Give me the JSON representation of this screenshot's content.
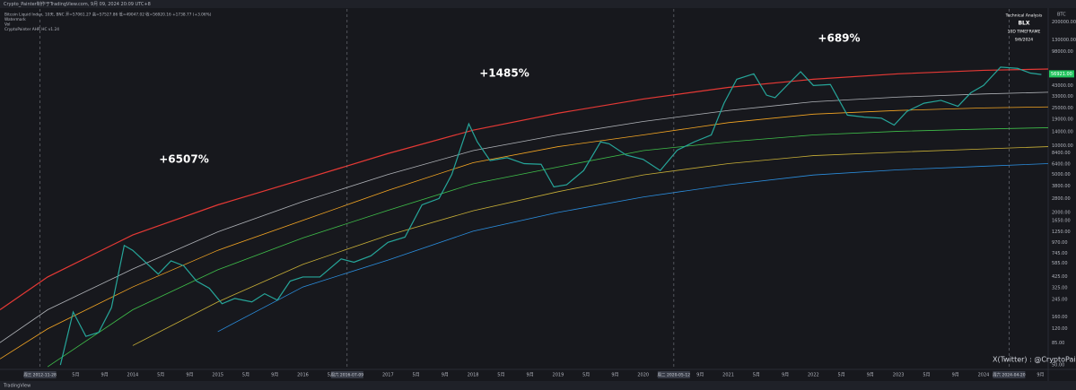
{
  "header": {
    "top_bar": "Crypto_Painter制作于TradingView.com, 9月 09, 2024 20:09 UTC+8",
    "legend_lines": [
      "Bitcoin Liquid Index, 10天, BNC  开=57061.27 高=57527.86 低=49047.02 收=56920.16 +1738.77 (+3.06%)",
      "Watermark",
      "Vol",
      "CryptoPainter AHR HC v1.24"
    ]
  },
  "chart_data": {
    "type": "line",
    "log_scale": true,
    "grid": false,
    "color": "#26a69a",
    "x": [
      2013.15,
      2013.3,
      2013.45,
      2013.6,
      2013.75,
      2013.9,
      2014.0,
      2014.15,
      2014.3,
      2014.45,
      2014.6,
      2014.75,
      2014.9,
      2015.05,
      2015.2,
      2015.4,
      2015.55,
      2015.7,
      2015.85,
      2016.0,
      2016.2,
      2016.45,
      2016.6,
      2016.8,
      2017.0,
      2017.2,
      2017.4,
      2017.6,
      2017.75,
      2017.95,
      2018.05,
      2018.2,
      2018.4,
      2018.6,
      2018.8,
      2018.95,
      2019.1,
      2019.3,
      2019.5,
      2019.6,
      2019.8,
      2020.0,
      2020.2,
      2020.4,
      2020.6,
      2020.8,
      2020.95,
      2021.1,
      2021.3,
      2021.45,
      2021.55,
      2021.7,
      2021.85,
      2022.0,
      2022.2,
      2022.4,
      2022.6,
      2022.8,
      2022.95,
      2023.1,
      2023.3,
      2023.5,
      2023.7,
      2023.85,
      2024.0,
      2024.2,
      2024.4,
      2024.55,
      2024.68
    ],
    "values": [
      50,
      180,
      100,
      110,
      200,
      900,
      800,
      600,
      450,
      620,
      550,
      380,
      320,
      220,
      250,
      230,
      280,
      240,
      380,
      420,
      420,
      650,
      600,
      700,
      970,
      1100,
      2400,
      2800,
      5000,
      17000,
      11000,
      7000,
      7500,
      6500,
      6400,
      3700,
      3900,
      5500,
      11000,
      10500,
      8000,
      7200,
      5500,
      9000,
      11000,
      13000,
      28000,
      50000,
      57000,
      34000,
      32000,
      44000,
      60000,
      43000,
      44000,
      21000,
      20000,
      19500,
      16500,
      23000,
      28000,
      30000,
      26000,
      36000,
      43000,
      67000,
      65000,
      58000,
      56000
    ],
    "bands": [
      {
        "color": "#e53935",
        "x": [
          2012.44,
          2013,
          2014,
          2015,
          2016,
          2017,
          2018,
          2019,
          2020,
          2021,
          2022,
          2023,
          2024,
          2024.76
        ],
        "values": [
          190,
          420,
          1160,
          2400,
          4440,
          8300,
          14600,
          22000,
          31000,
          41000,
          50000,
          57000,
          62000,
          64000
        ]
      },
      {
        "color": "#b0b3b8",
        "x": [
          2012.44,
          2013,
          2014,
          2015,
          2016,
          2017,
          2018,
          2019,
          2020,
          2021,
          2022,
          2023,
          2024,
          2024.76
        ],
        "values": [
          86,
          190,
          510,
          1250,
          2600,
          5000,
          8900,
          13000,
          18000,
          23500,
          29000,
          32500,
          35000,
          36500
        ]
      },
      {
        "color": "#f5a623",
        "x": [
          2012.44,
          2013,
          2014,
          2015,
          2016,
          2017,
          2018,
          2019,
          2020,
          2021,
          2022,
          2023,
          2024,
          2024.76
        ],
        "values": [
          58,
          120,
          330,
          800,
          1650,
          3400,
          6650,
          9800,
          13000,
          17500,
          21500,
          23500,
          25000,
          25600
        ]
      },
      {
        "color": "#3fbf4a",
        "x": [
          2012.44,
          2013,
          2014,
          2015,
          2016,
          2017,
          2018,
          2019,
          2020,
          2021,
          2022,
          2023,
          2024,
          2024.76
        ],
        "values": [
          null,
          48,
          190,
          500,
          1080,
          2100,
          3990,
          6000,
          8900,
          11000,
          13000,
          14200,
          15000,
          15500
        ]
      },
      {
        "color": "#c9b037",
        "x": [
          2012.44,
          2013,
          2014,
          2015,
          2016,
          2017,
          2018,
          2019,
          2020,
          2021,
          2022,
          2023,
          2024,
          2024.76
        ],
        "values": [
          null,
          null,
          80,
          230,
          570,
          1150,
          2080,
          3300,
          4950,
          6500,
          7890,
          8600,
          9280,
          9800
        ]
      },
      {
        "color": "#2b8fe0",
        "x": [
          2012.44,
          2013,
          2014,
          2015,
          2016,
          2017,
          2018,
          2019,
          2020,
          2021,
          2022,
          2023,
          2024,
          2024.76
        ],
        "values": [
          null,
          null,
          null,
          112,
          330,
          632,
          1270,
          2000,
          2900,
          3900,
          4940,
          5600,
          6100,
          6500
        ]
      }
    ],
    "xlim": [
      2012.44,
      2024.76
    ],
    "xticks": [
      {
        "value": 2013.33,
        "label": "5月"
      },
      {
        "value": 2013.67,
        "label": "9月"
      },
      2014,
      {
        "value": 2014.33,
        "label": "5月"
      },
      {
        "value": 2014.67,
        "label": "9月"
      },
      2015,
      {
        "value": 2015.33,
        "label": "5月"
      },
      {
        "value": 2015.67,
        "label": "9月"
      },
      2016,
      {
        "value": 2016.33,
        "label": "5月"
      },
      2017,
      {
        "value": 2017.33,
        "label": "5月"
      },
      {
        "value": 2017.67,
        "label": "9月"
      },
      2018,
      {
        "value": 2018.33,
        "label": "5月"
      },
      {
        "value": 2018.67,
        "label": "9月"
      },
      2019,
      {
        "value": 2019.33,
        "label": "5月"
      },
      {
        "value": 2019.67,
        "label": "9月"
      },
      2020,
      {
        "value": 2020.67,
        "label": "9月"
      },
      2021,
      {
        "value": 2021.33,
        "label": "5月"
      },
      {
        "value": 2021.67,
        "label": "9月"
      },
      2022,
      {
        "value": 2022.33,
        "label": "5月"
      },
      {
        "value": 2022.67,
        "label": "9月"
      },
      2023,
      {
        "value": 2023.33,
        "label": "5月"
      },
      {
        "value": 2023.67,
        "label": "9月"
      },
      2024,
      {
        "value": 2024.67,
        "label": "9月"
      }
    ],
    "ylim": [
      45,
      220000
    ],
    "yticks": [
      {
        "value": 200000,
        "label": "200000.00"
      },
      {
        "value": 130000,
        "label": "130000.00"
      },
      {
        "value": 98000,
        "label": "98000.00"
      },
      {
        "value": 56000,
        "label": "56000.00"
      },
      {
        "value": 43000,
        "label": "43000.00"
      },
      {
        "value": 33000,
        "label": "33000.00"
      },
      {
        "value": 25000,
        "label": "25000.00"
      },
      {
        "value": 19000,
        "label": "19000.00"
      },
      {
        "value": 14000,
        "label": "14000.00"
      },
      {
        "value": 10000,
        "label": "10000.00"
      },
      {
        "value": 8400,
        "label": "8400.00"
      },
      {
        "value": 6400,
        "label": "6400.00"
      },
      {
        "value": 5000,
        "label": "5000.00"
      },
      {
        "value": 3800,
        "label": "3800.00"
      },
      {
        "value": 2800,
        "label": "2800.00"
      },
      {
        "value": 2000,
        "label": "2000.00"
      },
      {
        "value": 1650,
        "label": "1650.00"
      },
      {
        "value": 1250,
        "label": "1250.00"
      },
      {
        "value": 970,
        "label": "970.00"
      },
      {
        "value": 745,
        "label": "745.00"
      },
      {
        "value": 585,
        "label": "585.00"
      },
      {
        "value": 425,
        "label": "425.00"
      },
      {
        "value": 325,
        "label": "325.00"
      },
      {
        "value": 245,
        "label": "245.00"
      },
      {
        "value": 160,
        "label": "160.00"
      },
      {
        "value": 120,
        "label": "120.00"
      },
      {
        "value": 85,
        "label": "85.00"
      },
      {
        "value": 50,
        "label": "50.00"
      }
    ],
    "events": [
      {
        "x": 2012.91,
        "label": "周三 2012-11-28"
      },
      {
        "x": 2016.52,
        "label": "周六 2016-07-09"
      },
      {
        "x": 2020.36,
        "label": "周二 2020-05-12"
      },
      {
        "x": 2024.3,
        "label": "周六 2024-04-20"
      }
    ],
    "annotations": [
      "+6507%",
      "+1485%",
      "+689%"
    ],
    "last_price": {
      "value": 56921,
      "label": "56921.00"
    },
    "currency": "BTC",
    "info_box": [
      "Technical Analysis",
      "BLX",
      "10D TIMEFRAME",
      "9/6/2024"
    ],
    "credit": "X(Twitter) : @CryptoPainter_X"
  },
  "footer": {
    "brand": "TradingView"
  }
}
